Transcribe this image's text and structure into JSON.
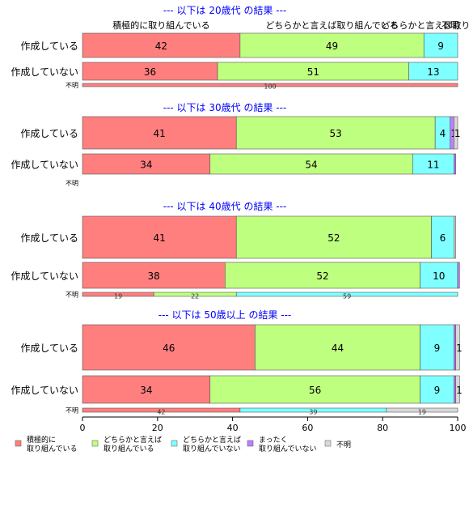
{
  "chart_data": {
    "type": "bar",
    "orientation": "horizontal",
    "stacked": true,
    "xlim": [
      0,
      100
    ],
    "x_ticks": [
      0,
      20,
      40,
      60,
      80,
      100
    ],
    "grid": false,
    "legend_position": "bottom",
    "title_color": "#0000ff",
    "series": [
      {
        "name": "積極的に\n取り組んでいる",
        "color": "#ff7f7f"
      },
      {
        "name": "どちらかと言えば\n取り組んでいる",
        "color": "#bfff7f"
      },
      {
        "name": "どちらかと言えば\n取り組んでいない",
        "color": "#7fffff"
      },
      {
        "name": "まったく\n取り組んでいない",
        "color": "#bf7fff"
      },
      {
        "name": "不明",
        "color": "#d9d9d9"
      }
    ],
    "groups": [
      {
        "title": "--- 以下は 20歳代 の結果 ---",
        "header_labels": [
          "積極的に取り組んでいる",
          "どちらかと言えば取り組んでいる",
          "どちらかと言えば取り組んでいない",
          "不明"
        ],
        "rows": [
          {
            "label": "作成している",
            "values": [
              42,
              49,
              9,
              0,
              0
            ]
          },
          {
            "label": "作成していない",
            "values": [
              36,
              51,
              13,
              0,
              0
            ]
          },
          {
            "label": "不明",
            "values": [
              100,
              0,
              0,
              0,
              0
            ],
            "thin": true
          }
        ]
      },
      {
        "title": "--- 以下は 30歳代 の結果 ---",
        "rows": [
          {
            "label": "作成している",
            "values": [
              41,
              53,
              4,
              1,
              1
            ]
          },
          {
            "label": "作成していない",
            "values": [
              34,
              54,
              11,
              0.5,
              0
            ]
          },
          {
            "label": "不明",
            "values": [
              0,
              0,
              0,
              0,
              0
            ],
            "thin": true
          }
        ]
      },
      {
        "title": "--- 以下は 40歳代 の結果 ---",
        "rows": [
          {
            "label": "作成している",
            "values": [
              41,
              52,
              6,
              0,
              0.5
            ]
          },
          {
            "label": "作成していない",
            "values": [
              38,
              52,
              10,
              0.5,
              0
            ]
          },
          {
            "label": "不明",
            "values": [
              19,
              22,
              59,
              0,
              0
            ],
            "thin": true
          }
        ]
      },
      {
        "title": "--- 以下は 50歳以上 の結果 ---",
        "rows": [
          {
            "label": "作成している",
            "values": [
              46,
              44,
              9,
              0.5,
              1
            ]
          },
          {
            "label": "作成していない",
            "values": [
              34,
              56,
              9,
              0.5,
              1
            ]
          },
          {
            "label": "不明",
            "values": [
              42,
              0,
              39,
              0,
              19
            ],
            "thin": true
          }
        ]
      }
    ]
  }
}
